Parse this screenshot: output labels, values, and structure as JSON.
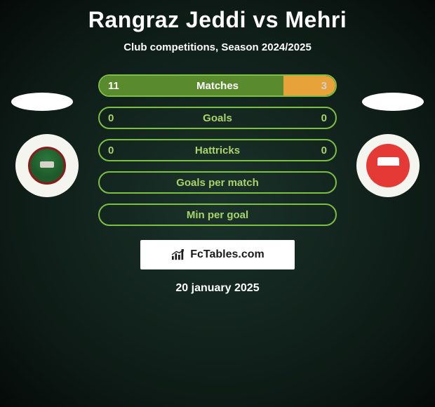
{
  "title": "Rangraz Jeddi vs Mehri",
  "subtitle": "Club competitions, Season 2024/2025",
  "date": "20 january 2025",
  "logo": {
    "text": "FcTables.com"
  },
  "colors": {
    "border_green": "#7cc043",
    "fill_green": "#5a8a2e",
    "fill_lime": "#9acd32",
    "fill_orange": "#e8a23a",
    "label_white": "#ffffff",
    "label_lime": "#a8d468",
    "val_white": "#ffffff",
    "val_dim": "#d0d0d0"
  },
  "bars": [
    {
      "label": "Matches",
      "left_val": "11",
      "right_val": "3",
      "left_pct": 78,
      "right_pct": 22,
      "left_fill": "#5a8a2e",
      "right_fill": "#e8a23a",
      "label_color": "#ffffff",
      "left_val_color": "#ffffff",
      "right_val_color": "#d0d0d0"
    },
    {
      "label": "Goals",
      "left_val": "0",
      "right_val": "0",
      "left_pct": 0,
      "right_pct": 0,
      "left_fill": "#5a8a2e",
      "right_fill": "#e8a23a",
      "label_color": "#a8d468",
      "left_val_color": "#a8d468",
      "right_val_color": "#a8d468"
    },
    {
      "label": "Hattricks",
      "left_val": "0",
      "right_val": "0",
      "left_pct": 0,
      "right_pct": 0,
      "left_fill": "#5a8a2e",
      "right_fill": "#e8a23a",
      "label_color": "#a8d468",
      "left_val_color": "#a8d468",
      "right_val_color": "#a8d468"
    },
    {
      "label": "Goals per match",
      "left_val": "",
      "right_val": "",
      "left_pct": 0,
      "right_pct": 0,
      "left_fill": "#5a8a2e",
      "right_fill": "#e8a23a",
      "label_color": "#a8d468",
      "left_val_color": "#a8d468",
      "right_val_color": "#a8d468"
    },
    {
      "label": "Min per goal",
      "left_val": "",
      "right_val": "",
      "left_pct": 0,
      "right_pct": 0,
      "left_fill": "#5a8a2e",
      "right_fill": "#e8a23a",
      "label_color": "#a8d468",
      "left_val_color": "#a8d468",
      "right_val_color": "#a8d468"
    }
  ]
}
